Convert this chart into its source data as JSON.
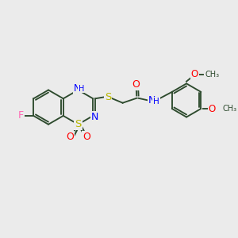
{
  "bg_color": "#ebebeb",
  "bond_color": "#2d4a2d",
  "atom_colors": {
    "N": "#0000ff",
    "S": "#b8b800",
    "O": "#ff0000",
    "F": "#ff69b4",
    "C": "#2d4a2d",
    "H": "#808080"
  },
  "figsize": [
    3.0,
    3.0
  ],
  "dpi": 100
}
